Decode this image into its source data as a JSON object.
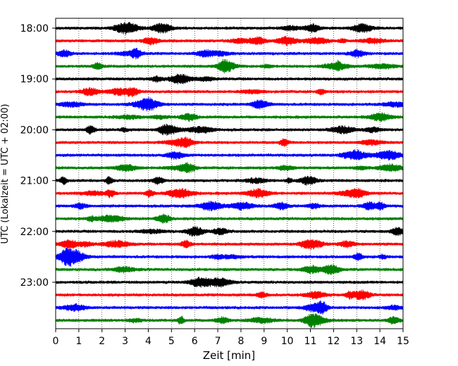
{
  "chart_data": {
    "type": "line",
    "title": "",
    "xlabel": "Zeit  [min]",
    "ylabel": "UTC (Lokalzeit = UTC + 02:00)",
    "xlim": [
      0,
      15
    ],
    "x_ticks": [
      "0",
      "1",
      "2",
      "3",
      "4",
      "5",
      "6",
      "7",
      "8",
      "9",
      "10",
      "11",
      "12",
      "13",
      "14",
      "15"
    ],
    "y_ticks": [
      {
        "label": "18:00",
        "trace_index": 0
      },
      {
        "label": "19:00",
        "trace_index": 4
      },
      {
        "label": "20:00",
        "trace_index": 8
      },
      {
        "label": "21:00",
        "trace_index": 12
      },
      {
        "label": "22:00",
        "trace_index": 16
      },
      {
        "label": "23:00",
        "trace_index": 20
      }
    ],
    "trace_interval_min": 15,
    "trace_count": 24,
    "trace_colors": [
      "#000000",
      "#ff0000",
      "#0000ff",
      "#008000"
    ],
    "grid": {
      "x": true,
      "style": "dotted"
    },
    "series": [
      {
        "start": "18:00",
        "color": "#000000"
      },
      {
        "start": "18:15",
        "color": "#ff0000"
      },
      {
        "start": "18:30",
        "color": "#0000ff"
      },
      {
        "start": "18:45",
        "color": "#008000"
      },
      {
        "start": "19:00",
        "color": "#000000"
      },
      {
        "start": "19:15",
        "color": "#ff0000"
      },
      {
        "start": "19:30",
        "color": "#0000ff"
      },
      {
        "start": "19:45",
        "color": "#008000"
      },
      {
        "start": "20:00",
        "color": "#000000"
      },
      {
        "start": "20:15",
        "color": "#ff0000"
      },
      {
        "start": "20:30",
        "color": "#0000ff"
      },
      {
        "start": "20:45",
        "color": "#008000"
      },
      {
        "start": "21:00",
        "color": "#000000"
      },
      {
        "start": "21:15",
        "color": "#ff0000"
      },
      {
        "start": "21:30",
        "color": "#0000ff"
      },
      {
        "start": "21:45",
        "color": "#008000"
      },
      {
        "start": "22:00",
        "color": "#000000"
      },
      {
        "start": "22:15",
        "color": "#ff0000"
      },
      {
        "start": "22:30",
        "color": "#0000ff"
      },
      {
        "start": "22:45",
        "color": "#008000"
      },
      {
        "start": "23:00",
        "color": "#000000"
      },
      {
        "start": "23:15",
        "color": "#ff0000"
      },
      {
        "start": "23:30",
        "color": "#0000ff"
      },
      {
        "start": "23:45",
        "color": "#008000"
      }
    ]
  }
}
